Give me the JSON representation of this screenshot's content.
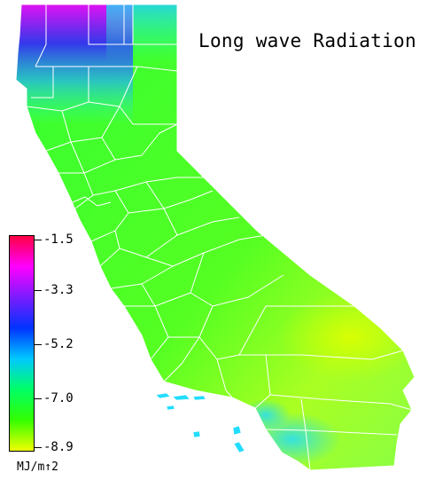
{
  "title": "Long wave Radiation",
  "legend": {
    "units": "MJ/m↑2",
    "ticks": [
      "-1.5",
      "-3.3",
      "-5.2",
      "-7.0",
      "-8.9"
    ],
    "colors": [
      "#ff0044",
      "#ff00ff",
      "#7a1cff",
      "#0033ff",
      "#00c8ff",
      "#00ff66",
      "#33ff00",
      "#f0ff00"
    ]
  },
  "map": {
    "region": "California",
    "features": [
      "county boundaries",
      "Channel Islands"
    ]
  }
}
